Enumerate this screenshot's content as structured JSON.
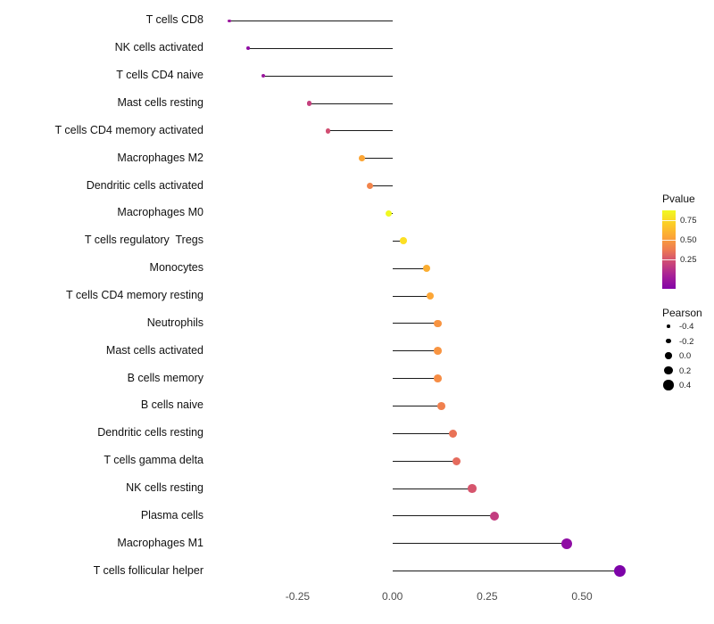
{
  "chart_data": {
    "type": "lollipop",
    "title": "",
    "xlabel": "",
    "ylabel": "",
    "xlim": [
      -0.47,
      0.66
    ],
    "grid": false,
    "legend_position": "right",
    "x_ticks": [
      {
        "value": -0.25,
        "label": "-0.25"
      },
      {
        "value": 0.0,
        "label": "0.00"
      },
      {
        "value": 0.25,
        "label": "0.25"
      },
      {
        "value": 0.5,
        "label": "0.50"
      }
    ],
    "points": [
      {
        "label": "T cells CD8",
        "pearson": -0.43,
        "color": "#9c179e"
      },
      {
        "label": "NK cells activated",
        "pearson": -0.38,
        "color": "#8f0da4"
      },
      {
        "label": "T cells CD4 naive",
        "pearson": -0.34,
        "color": "#9c179e"
      },
      {
        "label": "Mast cells resting",
        "pearson": -0.22,
        "color": "#c5407e"
      },
      {
        "label": "T cells CD4 memory activated",
        "pearson": -0.17,
        "color": "#d14e72"
      },
      {
        "label": "Macrophages M2",
        "pearson": -0.08,
        "color": "#fca636"
      },
      {
        "label": "Dendritic cells activated",
        "pearson": -0.06,
        "color": "#f2844b"
      },
      {
        "label": "Macrophages M0",
        "pearson": -0.01,
        "color": "#f0f921"
      },
      {
        "label": "T cells regulatory  Tregs",
        "pearson": 0.03,
        "color": "#fcdf24"
      },
      {
        "label": "Monocytes",
        "pearson": 0.09,
        "color": "#fbae32"
      },
      {
        "label": "T cells CD4 memory resting",
        "pearson": 0.1,
        "color": "#fca636"
      },
      {
        "label": "Neutrophils",
        "pearson": 0.12,
        "color": "#f89441"
      },
      {
        "label": "Mast cells activated",
        "pearson": 0.12,
        "color": "#f89441"
      },
      {
        "label": "B cells memory",
        "pearson": 0.12,
        "color": "#f68d45"
      },
      {
        "label": "B cells naive",
        "pearson": 0.13,
        "color": "#f0804e"
      },
      {
        "label": "Dendritic cells resting",
        "pearson": 0.16,
        "color": "#e97257"
      },
      {
        "label": "T cells gamma delta",
        "pearson": 0.17,
        "color": "#e56b5d"
      },
      {
        "label": "NK cells resting",
        "pearson": 0.21,
        "color": "#d6556d"
      },
      {
        "label": "Plasma cells",
        "pearson": 0.27,
        "color": "#c33d80"
      },
      {
        "label": "Macrophages M1",
        "pearson": 0.46,
        "color": "#8f0da4"
      },
      {
        "label": "T cells follicular helper",
        "pearson": 0.6,
        "color": "#7d03a8"
      }
    ],
    "legends": {
      "pvalue": {
        "title": "Pvalue",
        "ticks": [
          {
            "label": "0.75",
            "pos": 0.13
          },
          {
            "label": "0.50",
            "pos": 0.38
          },
          {
            "label": "0.25",
            "pos": 0.63
          }
        ],
        "gradient_top_to_bottom": [
          "#f0f921",
          "#fcce25",
          "#fca636",
          "#ee7b51",
          "#cc4778",
          "#a62098",
          "#8405a7"
        ]
      },
      "pearson": {
        "title": "Pearson",
        "items": [
          {
            "label": "-0.4",
            "size": -0.4
          },
          {
            "label": "-0.2",
            "size": -0.2
          },
          {
            "label": "0.0",
            "size": 0.0
          },
          {
            "label": "0.2",
            "size": 0.2
          },
          {
            "label": "0.4",
            "size": 0.4
          }
        ]
      }
    }
  }
}
